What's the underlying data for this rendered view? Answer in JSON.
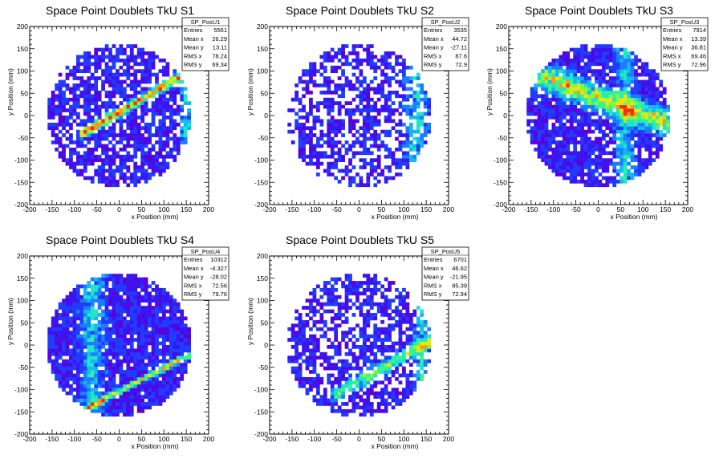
{
  "chart_data": [
    {
      "type": "heatmap",
      "title": "Space Point Doublets TkU S1",
      "xlabel": "x Position (mm)",
      "ylabel": "y Position (mm)",
      "xlim": [
        -200,
        200
      ],
      "ylim": [
        -200,
        200
      ],
      "ticks": [
        "-200",
        "-150",
        "-100",
        "-50",
        "0",
        "50",
        "100",
        "150",
        "200"
      ],
      "stats": {
        "name": "SP_PosU1",
        "rows": [
          {
            "label": "Entries",
            "value": "5561"
          },
          {
            "label": "Mean x",
            "value": "26.29"
          },
          {
            "label": "Mean y",
            "value": "13.11"
          },
          {
            "label": "RMS x",
            "value": "78.24"
          },
          {
            "label": "RMS y",
            "value": "69.34"
          }
        ]
      },
      "pattern": {
        "kind": "band",
        "x1": -80,
        "y1": -40,
        "x2": 140,
        "y2": 90,
        "width": 14,
        "peak": 1.0,
        "side_x": 150,
        "side_w": 18
      }
    },
    {
      "type": "heatmap",
      "title": "Space Point Doublets TkU S2",
      "xlabel": "x Position (mm)",
      "ylabel": "y Position (mm)",
      "xlim": [
        -200,
        200
      ],
      "ylim": [
        -200,
        200
      ],
      "ticks": [
        "-200",
        "-150",
        "-100",
        "-50",
        "0",
        "50",
        "100",
        "150",
        "200"
      ],
      "stats": {
        "name": "SP_PosU2",
        "rows": [
          {
            "label": "Entries",
            "value": "3535"
          },
          {
            "label": "Mean x",
            "value": "44.72"
          },
          {
            "label": "Mean y",
            "value": "-27.11"
          },
          {
            "label": "RMS x",
            "value": "87.6"
          },
          {
            "label": "RMS y",
            "value": "72.9"
          }
        ]
      },
      "pattern": {
        "kind": "side",
        "side_x": 130,
        "side_w": 35,
        "peak": 0.8
      }
    },
    {
      "type": "heatmap",
      "title": "Space Point Doublets TkU S3",
      "xlabel": "x Position (mm)",
      "ylabel": "y Position (mm)",
      "xlim": [
        -200,
        200
      ],
      "ylim": [
        -200,
        200
      ],
      "ticks": [
        "-200",
        "-150",
        "-100",
        "-50",
        "0",
        "50",
        "100",
        "150",
        "200"
      ],
      "stats": {
        "name": "SP_PosU3",
        "rows": [
          {
            "label": "Entries",
            "value": "7914"
          },
          {
            "label": "Mean x",
            "value": "13.39"
          },
          {
            "label": "Mean y",
            "value": "36.81"
          },
          {
            "label": "RMS x",
            "value": "69.46"
          },
          {
            "label": "RMS y",
            "value": "72.96"
          }
        ]
      },
      "pattern": {
        "kind": "band",
        "x1": -130,
        "y1": 90,
        "x2": 160,
        "y2": -20,
        "width": 40,
        "peak": 0.7,
        "side_x": 60,
        "side_w": 30
      }
    },
    {
      "type": "heatmap",
      "title": "Space Point Doublets TkU S4",
      "xlabel": "x Position (mm)",
      "ylabel": "y Position (mm)",
      "xlim": [
        -200,
        200
      ],
      "ylim": [
        -200,
        200
      ],
      "ticks": [
        "-200",
        "-150",
        "-100",
        "-50",
        "0",
        "50",
        "100",
        "150",
        "200"
      ],
      "stats": {
        "name": "SP_PosU4",
        "rows": [
          {
            "label": "Entries",
            "value": "10312"
          },
          {
            "label": "Mean x",
            "value": "-4.327"
          },
          {
            "label": "Mean y",
            "value": "-28.02"
          },
          {
            "label": "RMS x",
            "value": "72.56"
          },
          {
            "label": "RMS y",
            "value": "79.76"
          }
        ]
      },
      "pattern": {
        "kind": "band",
        "x1": -70,
        "y1": -140,
        "x2": 160,
        "y2": -20,
        "width": 10,
        "peak": 0.75,
        "side_x": -60,
        "side_w": 40
      }
    },
    {
      "type": "heatmap",
      "title": "Space Point Doublets TkU S5",
      "xlabel": "x Position (mm)",
      "ylabel": "y Position (mm)",
      "xlim": [
        -200,
        200
      ],
      "ylim": [
        -200,
        200
      ],
      "ticks": [
        "-200",
        "-150",
        "-100",
        "-50",
        "0",
        "50",
        "100",
        "150",
        "200"
      ],
      "stats": {
        "name": "SP_PosU5",
        "rows": [
          {
            "label": "Entries",
            "value": "6701"
          },
          {
            "label": "Mean x",
            "value": "46.62"
          },
          {
            "label": "Mean y",
            "value": "-21.95"
          },
          {
            "label": "RMS x",
            "value": "85.39"
          },
          {
            "label": "RMS y",
            "value": "72.94"
          }
        ]
      },
      "pattern": {
        "kind": "band",
        "x1": -50,
        "y1": -110,
        "x2": 160,
        "y2": 10,
        "width": 20,
        "peak": 0.55,
        "side_x": 140,
        "side_w": 25
      }
    }
  ],
  "colors": {
    "palette": [
      "#5a00d9",
      "#3c14f0",
      "#1f3cff",
      "#1b7dff",
      "#14b9f0",
      "#1fe6c8",
      "#37f58c",
      "#8cf53c",
      "#e6e614",
      "#ff9614",
      "#ff2814"
    ],
    "empty": "#ffffff",
    "frame": "#000000"
  }
}
